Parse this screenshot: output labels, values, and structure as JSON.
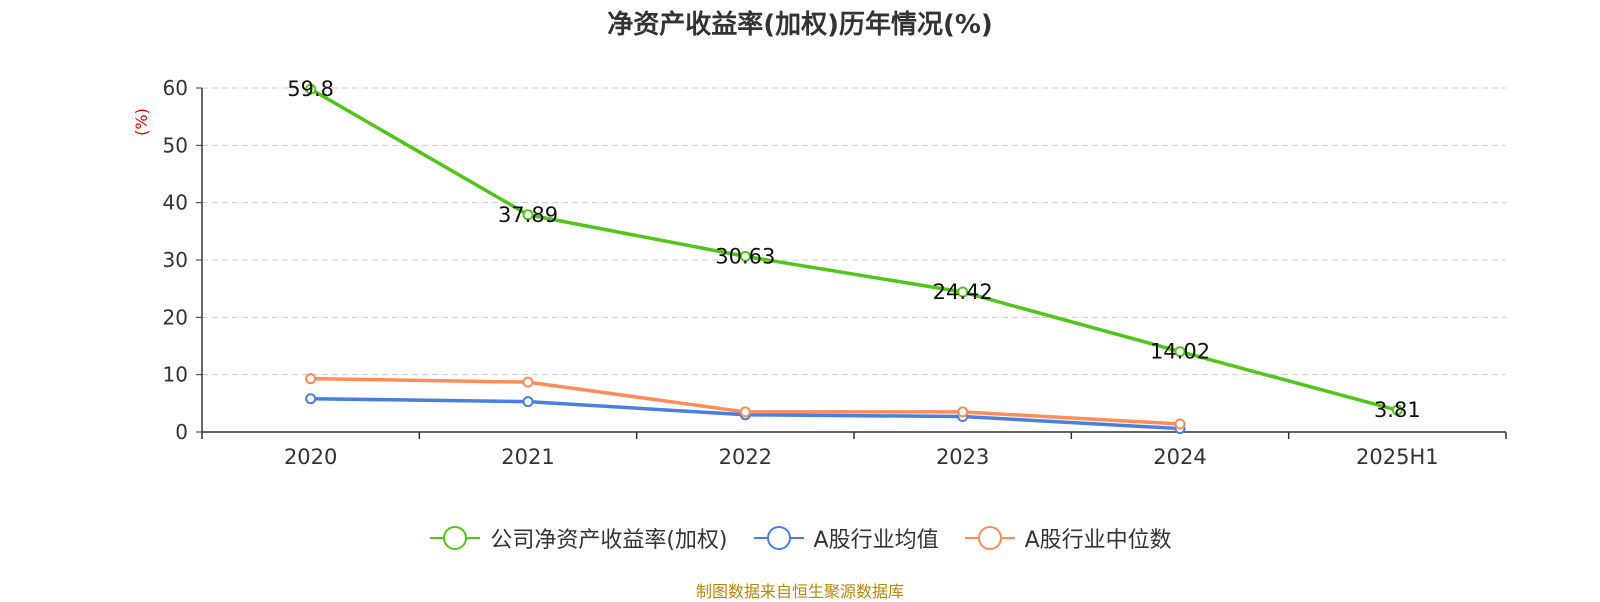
{
  "chart_data": {
    "type": "line",
    "title": "净资产收益率(加权)历年情况(%)",
    "ylabel": "(%)",
    "xlabel": "",
    "categories": [
      "2020",
      "2021",
      "2022",
      "2023",
      "2024",
      "2025H1"
    ],
    "ylim": [
      0,
      60
    ],
    "yticks": [
      0,
      10,
      20,
      30,
      40,
      50,
      60
    ],
    "grid": true,
    "legend_position": "bottom",
    "series": [
      {
        "name": "公司净资产收益率(加权)",
        "color": "#52c41a",
        "values": [
          59.8,
          37.89,
          30.63,
          24.42,
          14.02,
          3.81
        ],
        "labels": [
          "59.8",
          "37.89",
          "30.63",
          "24.42",
          "14.02",
          "3.81"
        ]
      },
      {
        "name": "A股行业均值",
        "color": "#4a7fe0",
        "values": [
          5.8,
          5.3,
          3.0,
          2.7,
          0.6,
          null
        ]
      },
      {
        "name": "A股行业中位数",
        "color": "#ff8c5a",
        "values": [
          9.3,
          8.7,
          3.5,
          3.5,
          1.4,
          null
        ]
      }
    ]
  },
  "source": "制图数据来自恒生聚源数据库"
}
